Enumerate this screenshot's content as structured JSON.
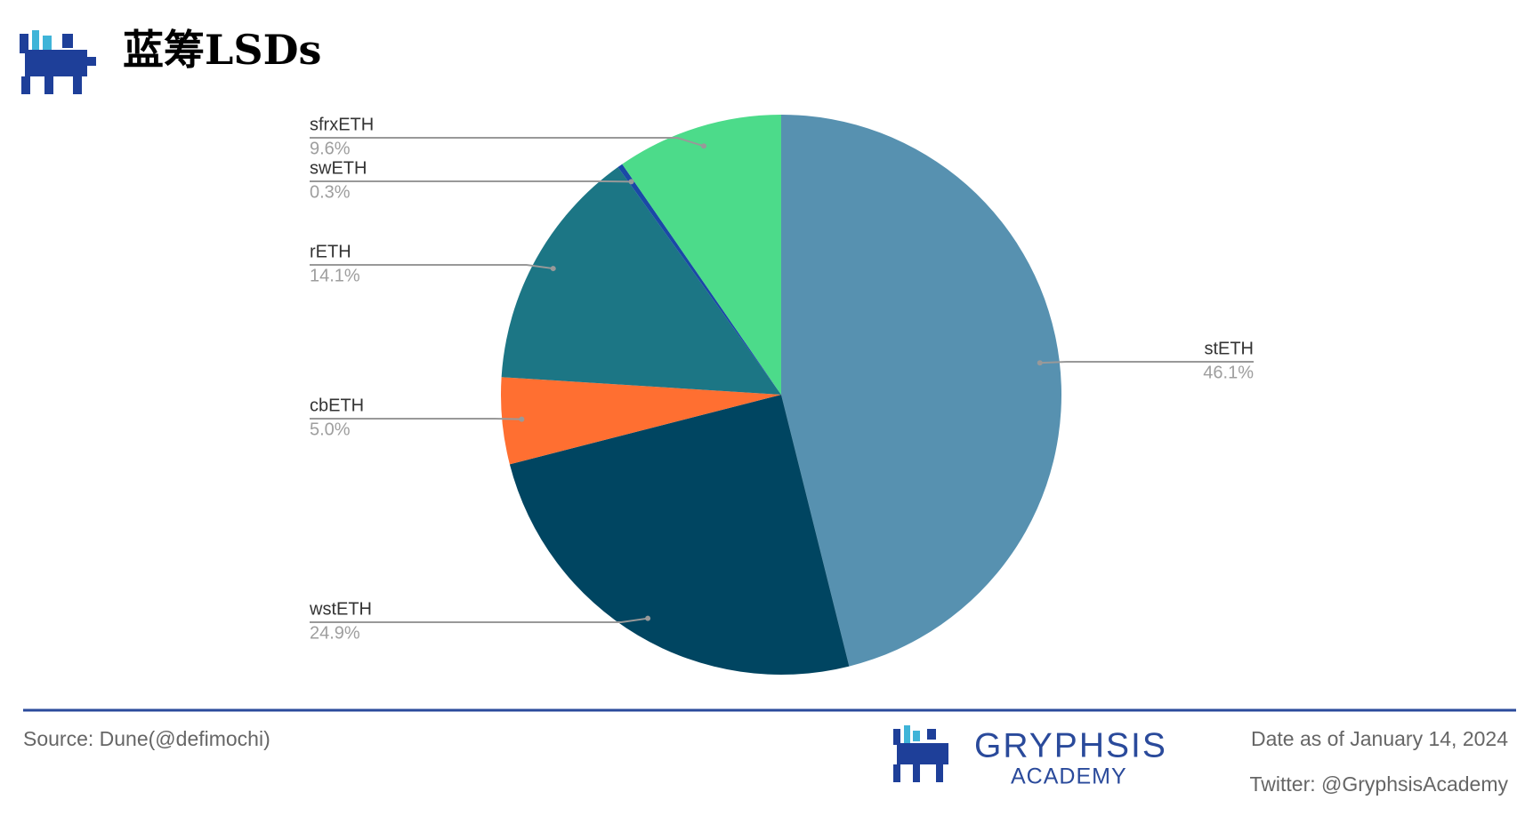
{
  "chart_data": {
    "type": "pie",
    "title": "蓝筹LSDs",
    "categories": [
      "stETH",
      "wstETH",
      "cbETH",
      "rETH",
      "swETH",
      "sfrxETH"
    ],
    "values": [
      46.1,
      24.9,
      5.0,
      14.1,
      0.3,
      9.6
    ],
    "value_labels": [
      "46.1%",
      "24.9%",
      "5.0%",
      "14.1%",
      "0.3%",
      "9.6%"
    ],
    "colors": [
      "#5791b0",
      "#004561",
      "#ff6f31",
      "#1c7685",
      "#1a49a6",
      "#4cdb8a"
    ]
  },
  "footer": {
    "source": "Source: Dune(@defimochi)",
    "date": "Date as of January 14, 2024",
    "twitter": "Twitter: @GryphsisAcademy",
    "brand": "GRYPHSIS",
    "brand_sub": "ACADEMY"
  }
}
